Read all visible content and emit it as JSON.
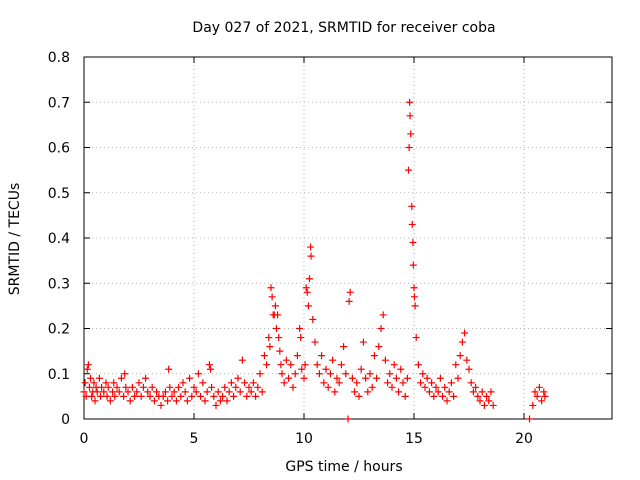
{
  "chart_data": {
    "type": "scatter",
    "title": "Day 027 of 2021, SRMTID for receiver coba",
    "xlabel": "GPS time / hours",
    "ylabel": "SRMTID / TECUs",
    "xlim": [
      0,
      24
    ],
    "ylim": [
      0,
      0.8
    ],
    "xticks": [
      "0",
      "5",
      "10",
      "15",
      "20"
    ],
    "yticks": [
      "0",
      "0.1",
      "0.2",
      "0.3",
      "0.4",
      "0.5",
      "0.6",
      "0.7",
      "0.8"
    ],
    "grid": true,
    "marker": "plus",
    "color": "#ff0000",
    "series": [
      {
        "name": "SRMTID",
        "points": [
          [
            0.0,
            0.06
          ],
          [
            0.05,
            0.08
          ],
          [
            0.1,
            0.05
          ],
          [
            0.15,
            0.11
          ],
          [
            0.2,
            0.12
          ],
          [
            0.25,
            0.07
          ],
          [
            0.3,
            0.09
          ],
          [
            0.35,
            0.05
          ],
          [
            0.4,
            0.06
          ],
          [
            0.45,
            0.08
          ],
          [
            0.5,
            0.04
          ],
          [
            0.55,
            0.07
          ],
          [
            0.6,
            0.06
          ],
          [
            0.7,
            0.09
          ],
          [
            0.75,
            0.05
          ],
          [
            0.8,
            0.07
          ],
          [
            0.9,
            0.06
          ],
          [
            1.0,
            0.08
          ],
          [
            1.05,
            0.05
          ],
          [
            1.1,
            0.07
          ],
          [
            1.2,
            0.04
          ],
          [
            1.3,
            0.06
          ],
          [
            1.35,
            0.08
          ],
          [
            1.4,
            0.05
          ],
          [
            1.5,
            0.07
          ],
          [
            1.6,
            0.06
          ],
          [
            1.7,
            0.09
          ],
          [
            1.8,
            0.05
          ],
          [
            1.85,
            0.1
          ],
          [
            1.9,
            0.07
          ],
          [
            2.0,
            0.06
          ],
          [
            2.1,
            0.04
          ],
          [
            2.2,
            0.07
          ],
          [
            2.3,
            0.05
          ],
          [
            2.4,
            0.06
          ],
          [
            2.5,
            0.08
          ],
          [
            2.6,
            0.05
          ],
          [
            2.7,
            0.07
          ],
          [
            2.8,
            0.09
          ],
          [
            2.9,
            0.06
          ],
          [
            3.0,
            0.05
          ],
          [
            3.1,
            0.07
          ],
          [
            3.2,
            0.04
          ],
          [
            3.3,
            0.06
          ],
          [
            3.4,
            0.05
          ],
          [
            3.5,
            0.03
          ],
          [
            3.6,
            0.05
          ],
          [
            3.7,
            0.06
          ],
          [
            3.8,
            0.04
          ],
          [
            3.85,
            0.11
          ],
          [
            3.9,
            0.07
          ],
          [
            4.0,
            0.05
          ],
          [
            4.1,
            0.06
          ],
          [
            4.2,
            0.04
          ],
          [
            4.3,
            0.07
          ],
          [
            4.4,
            0.05
          ],
          [
            4.5,
            0.08
          ],
          [
            4.6,
            0.06
          ],
          [
            4.7,
            0.04
          ],
          [
            4.8,
            0.09
          ],
          [
            4.9,
            0.05
          ],
          [
            5.0,
            0.07
          ],
          [
            5.1,
            0.06
          ],
          [
            5.2,
            0.1
          ],
          [
            5.3,
            0.05
          ],
          [
            5.4,
            0.08
          ],
          [
            5.5,
            0.04
          ],
          [
            5.6,
            0.06
          ],
          [
            5.7,
            0.12
          ],
          [
            5.75,
            0.11
          ],
          [
            5.8,
            0.07
          ],
          [
            5.9,
            0.05
          ],
          [
            6.0,
            0.03
          ],
          [
            6.1,
            0.06
          ],
          [
            6.2,
            0.04
          ],
          [
            6.3,
            0.05
          ],
          [
            6.4,
            0.07
          ],
          [
            6.5,
            0.04
          ],
          [
            6.6,
            0.06
          ],
          [
            6.7,
            0.08
          ],
          [
            6.8,
            0.05
          ],
          [
            6.9,
            0.07
          ],
          [
            7.0,
            0.09
          ],
          [
            7.1,
            0.06
          ],
          [
            7.2,
            0.13
          ],
          [
            7.3,
            0.08
          ],
          [
            7.4,
            0.05
          ],
          [
            7.5,
            0.07
          ],
          [
            7.6,
            0.06
          ],
          [
            7.7,
            0.08
          ],
          [
            7.8,
            0.05
          ],
          [
            7.9,
            0.07
          ],
          [
            8.0,
            0.1
          ],
          [
            8.1,
            0.06
          ],
          [
            8.2,
            0.14
          ],
          [
            8.3,
            0.12
          ],
          [
            8.4,
            0.18
          ],
          [
            8.45,
            0.16
          ],
          [
            8.5,
            0.29
          ],
          [
            8.55,
            0.27
          ],
          [
            8.6,
            0.23
          ],
          [
            8.65,
            0.23
          ],
          [
            8.7,
            0.25
          ],
          [
            8.75,
            0.2
          ],
          [
            8.8,
            0.23
          ],
          [
            8.85,
            0.18
          ],
          [
            8.9,
            0.15
          ],
          [
            8.95,
            0.12
          ],
          [
            9.0,
            0.1
          ],
          [
            9.1,
            0.08
          ],
          [
            9.2,
            0.13
          ],
          [
            9.3,
            0.09
          ],
          [
            9.4,
            0.12
          ],
          [
            9.5,
            0.07
          ],
          [
            9.6,
            0.1
          ],
          [
            9.7,
            0.14
          ],
          [
            9.8,
            0.2
          ],
          [
            9.85,
            0.18
          ],
          [
            9.9,
            0.11
          ],
          [
            10.0,
            0.09
          ],
          [
            10.05,
            0.12
          ],
          [
            10.1,
            0.29
          ],
          [
            10.15,
            0.28
          ],
          [
            10.2,
            0.25
          ],
          [
            10.25,
            0.31
          ],
          [
            10.3,
            0.38
          ],
          [
            10.32,
            0.36
          ],
          [
            10.4,
            0.22
          ],
          [
            10.5,
            0.17
          ],
          [
            10.6,
            0.12
          ],
          [
            10.7,
            0.1
          ],
          [
            10.8,
            0.14
          ],
          [
            10.9,
            0.08
          ],
          [
            11.0,
            0.11
          ],
          [
            11.1,
            0.07
          ],
          [
            11.2,
            0.1
          ],
          [
            11.3,
            0.13
          ],
          [
            11.4,
            0.06
          ],
          [
            11.5,
            0.09
          ],
          [
            11.6,
            0.08
          ],
          [
            11.7,
            0.12
          ],
          [
            11.8,
            0.16
          ],
          [
            11.9,
            0.1
          ],
          [
            12.0,
            0.0
          ],
          [
            12.05,
            0.26
          ],
          [
            12.1,
            0.28
          ],
          [
            12.2,
            0.09
          ],
          [
            12.3,
            0.06
          ],
          [
            12.4,
            0.08
          ],
          [
            12.5,
            0.05
          ],
          [
            12.6,
            0.11
          ],
          [
            12.7,
            0.17
          ],
          [
            12.8,
            0.09
          ],
          [
            12.9,
            0.06
          ],
          [
            13.0,
            0.1
          ],
          [
            13.1,
            0.07
          ],
          [
            13.2,
            0.14
          ],
          [
            13.3,
            0.09
          ],
          [
            13.4,
            0.16
          ],
          [
            13.5,
            0.2
          ],
          [
            13.6,
            0.23
          ],
          [
            13.7,
            0.13
          ],
          [
            13.8,
            0.08
          ],
          [
            13.9,
            0.1
          ],
          [
            14.0,
            0.07
          ],
          [
            14.1,
            0.12
          ],
          [
            14.2,
            0.09
          ],
          [
            14.3,
            0.06
          ],
          [
            14.4,
            0.11
          ],
          [
            14.5,
            0.08
          ],
          [
            14.6,
            0.05
          ],
          [
            14.7,
            0.09
          ],
          [
            14.75,
            0.55
          ],
          [
            14.78,
            0.6
          ],
          [
            14.8,
            0.7
          ],
          [
            14.82,
            0.67
          ],
          [
            14.85,
            0.63
          ],
          [
            14.9,
            0.47
          ],
          [
            14.92,
            0.43
          ],
          [
            14.95,
            0.39
          ],
          [
            14.97,
            0.34
          ],
          [
            15.0,
            0.29
          ],
          [
            15.02,
            0.27
          ],
          [
            15.05,
            0.25
          ],
          [
            15.1,
            0.18
          ],
          [
            15.2,
            0.12
          ],
          [
            15.3,
            0.08
          ],
          [
            15.4,
            0.1
          ],
          [
            15.5,
            0.07
          ],
          [
            15.6,
            0.09
          ],
          [
            15.7,
            0.06
          ],
          [
            15.8,
            0.08
          ],
          [
            15.9,
            0.05
          ],
          [
            16.0,
            0.07
          ],
          [
            16.1,
            0.06
          ],
          [
            16.2,
            0.09
          ],
          [
            16.3,
            0.05
          ],
          [
            16.4,
            0.07
          ],
          [
            16.5,
            0.04
          ],
          [
            16.6,
            0.06
          ],
          [
            16.7,
            0.08
          ],
          [
            16.8,
            0.05
          ],
          [
            16.9,
            0.12
          ],
          [
            17.0,
            0.09
          ],
          [
            17.1,
            0.14
          ],
          [
            17.2,
            0.17
          ],
          [
            17.3,
            0.19
          ],
          [
            17.4,
            0.13
          ],
          [
            17.5,
            0.11
          ],
          [
            17.6,
            0.08
          ],
          [
            17.7,
            0.06
          ],
          [
            17.8,
            0.07
          ],
          [
            17.9,
            0.05
          ],
          [
            18.0,
            0.04
          ],
          [
            18.1,
            0.06
          ],
          [
            18.2,
            0.03
          ],
          [
            18.3,
            0.05
          ],
          [
            18.4,
            0.04
          ],
          [
            18.5,
            0.06
          ],
          [
            18.6,
            0.03
          ],
          [
            20.25,
            0.0
          ],
          [
            20.4,
            0.03
          ],
          [
            20.5,
            0.06
          ],
          [
            20.6,
            0.05
          ],
          [
            20.7,
            0.07
          ],
          [
            20.8,
            0.04
          ],
          [
            20.9,
            0.06
          ],
          [
            20.95,
            0.05
          ]
        ]
      }
    ]
  }
}
